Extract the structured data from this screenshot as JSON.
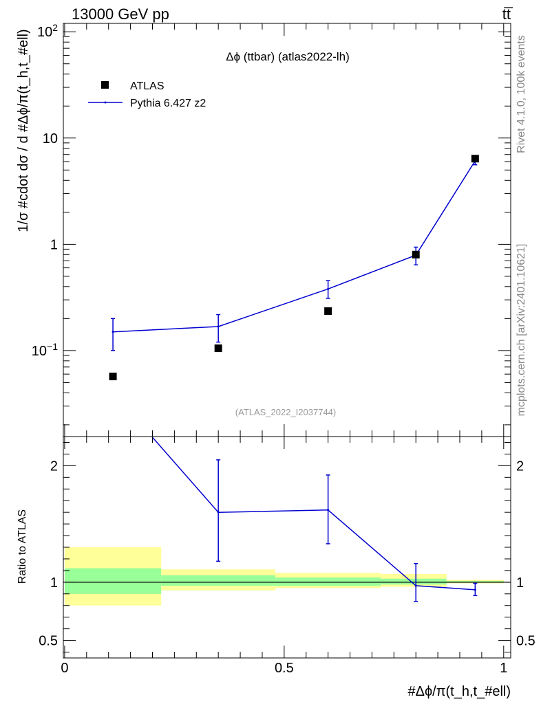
{
  "header": {
    "energy_label": "13000 GeV pp",
    "process_label": "tt̅"
  },
  "side_labels": {
    "rivet": "Rivet 4.1.0,  100k events",
    "mcplots": "mcplots.cern.ch [arXiv:2401.10621]"
  },
  "colors": {
    "mc_line": "#0000d0",
    "band_inner": "#99ff99",
    "band_outer": "#ffff99",
    "data_marker": "#000000"
  },
  "chart_data": [
    {
      "type": "scatter",
      "panel": "main",
      "title": "Δϕ (ttbar) (atlas2022-lh)",
      "watermark": "(ATLAS_2022_I2037744)",
      "ylabel": "1/σ #cdot dσ / d #Δϕ/π(t_h,t_#ell)",
      "yscale": "log",
      "xlim": [
        -0.003,
        1.016
      ],
      "ylim": [
        0.0155,
        120
      ],
      "yticks": [
        {
          "value": 0.1,
          "label": "10",
          "exp": "−1"
        },
        {
          "value": 1,
          "label": "1",
          "exp": ""
        },
        {
          "value": 10,
          "label": "10",
          "exp": ""
        },
        {
          "value": 100,
          "label": "10",
          "exp": "2"
        }
      ],
      "legend": {
        "position": "top-left",
        "entries": [
          {
            "name": "ATLAS",
            "style": "square-marker"
          },
          {
            "name": "Pythia 6.427 z2",
            "style": "line"
          }
        ]
      },
      "series": [
        {
          "name": "ATLAS",
          "x": [
            0.11,
            0.35,
            0.6,
            0.8,
            0.935
          ],
          "y": [
            0.057,
            0.105,
            0.235,
            0.8,
            6.4
          ]
        },
        {
          "name": "Pythia 6.427 z2",
          "x": [
            0.11,
            0.35,
            0.6,
            0.8,
            0.935
          ],
          "y": [
            0.15,
            0.168,
            0.38,
            0.79,
            6.1
          ],
          "err_low": [
            0.1,
            0.12,
            0.31,
            0.64,
            5.6
          ],
          "err_high": [
            0.2,
            0.218,
            0.455,
            0.94,
            6.6
          ]
        }
      ]
    },
    {
      "type": "line",
      "panel": "ratio",
      "ylabel": "Ratio to ATLAS",
      "xlabel": "#Δϕ/π(t_h,t_#ell)",
      "xlim": [
        -0.003,
        1.016
      ],
      "ylim": [
        0.35,
        2.25
      ],
      "xticks": [
        {
          "value": 0,
          "label": "0"
        },
        {
          "value": 0.5,
          "label": "0.5"
        },
        {
          "value": 1,
          "label": "1"
        }
      ],
      "yticks": [
        {
          "value": 0.5,
          "label": "0.5"
        },
        {
          "value": 1,
          "label": "1"
        },
        {
          "value": 2,
          "label": "2"
        }
      ],
      "bands": [
        {
          "x0": 0.0,
          "x1": 0.22,
          "outer": [
            0.8,
            1.3
          ],
          "inner": [
            0.9,
            1.12
          ]
        },
        {
          "x0": 0.22,
          "x1": 0.48,
          "outer": [
            0.93,
            1.11
          ],
          "inner": [
            0.97,
            1.06
          ]
        },
        {
          "x0": 0.48,
          "x1": 0.72,
          "outer": [
            0.95,
            1.08
          ],
          "inner": [
            0.97,
            1.04
          ]
        },
        {
          "x0": 0.72,
          "x1": 0.87,
          "outer": [
            0.96,
            1.07
          ],
          "inner": [
            0.98,
            1.03
          ]
        },
        {
          "x0": 0.87,
          "x1": 1.0,
          "outer": [
            0.99,
            1.02
          ],
          "inner": [
            0.995,
            1.01
          ]
        }
      ],
      "series": [
        {
          "name": "Pythia 6.427 z2 / ATLAS",
          "x": [
            0.11,
            0.35,
            0.6,
            0.8,
            0.935
          ],
          "y": [
            2.63,
            1.6,
            1.62,
            0.97,
            0.935
          ],
          "err_low": [
            null,
            1.18,
            1.33,
            0.835,
            0.885
          ],
          "err_high": [
            null,
            2.05,
            1.92,
            1.16,
            0.99
          ]
        }
      ]
    }
  ]
}
